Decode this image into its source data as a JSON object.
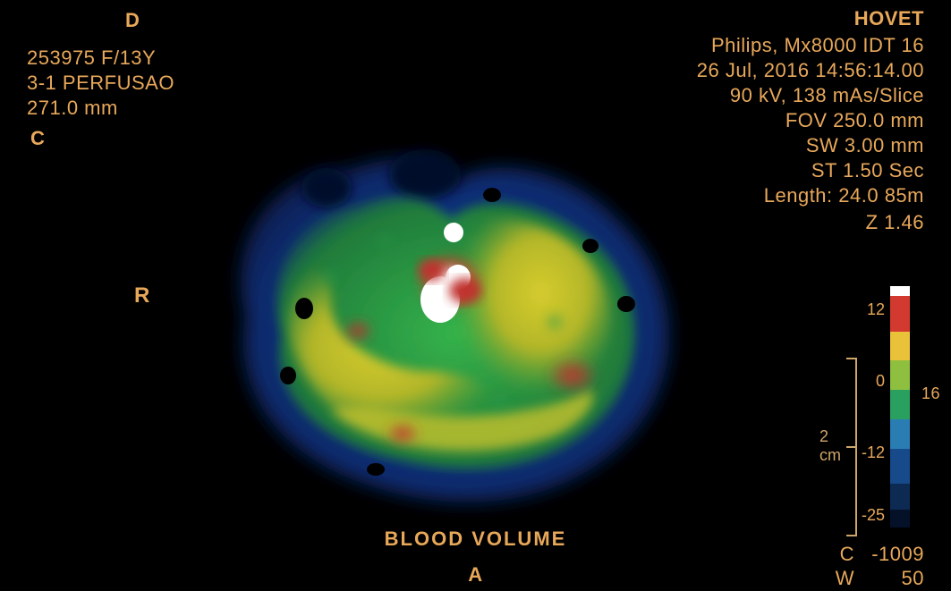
{
  "overlay": {
    "top_left": {
      "d_marker": "D",
      "patient_id": "253975 F/13Y",
      "protocol": "3-1 PERFUSAO",
      "slice_pos": "271.0 mm",
      "c_marker": "C"
    },
    "top_right": {
      "institution": "HOVET",
      "scanner": "Philips, Mx8000 IDT 16",
      "datetime": "26 Jul, 2016 14:56:14.00",
      "technique": "90 kV, 138 mAs/Slice",
      "fov": "FOV 250.0 mm",
      "sw": "SW 3.00 mm",
      "st": "ST 1.50 Sec",
      "length": "Length: 24.0 85m",
      "z_value": "Z 1.46"
    },
    "side_markers": {
      "right_marker": "R"
    },
    "bottom": {
      "map_title": "BLOOD VOLUME",
      "a_marker": "A",
      "wl_c_label": "C",
      "wl_c_value": "-1009",
      "wl_w_label": "W",
      "wl_w_value": "50"
    },
    "color_bar": {
      "labels": [
        "12",
        "0",
        "-12",
        "-25"
      ],
      "segments": [
        {
          "color": "#ffffff",
          "flex": 0.35
        },
        {
          "color": "#d33a2f",
          "flex": 1.2
        },
        {
          "color": "#e9c23a",
          "flex": 1.0
        },
        {
          "color": "#8fbf3f",
          "flex": 1.0
        },
        {
          "color": "#2aa060",
          "flex": 1.0
        },
        {
          "color": "#2a7db3",
          "flex": 1.0
        },
        {
          "color": "#164a8a",
          "flex": 1.2
        },
        {
          "color": "#0d2a52",
          "flex": 0.9
        },
        {
          "color": "#041129",
          "flex": 0.6
        }
      ]
    },
    "scale_ruler": {
      "label": "2 cm",
      "ticks": 3
    },
    "orientation_label": {
      "right_side": "16"
    }
  },
  "styling": {
    "background": "#000000",
    "text_color": "#e8a85a",
    "font_family": "Arial",
    "map": {
      "type": "perfusion-colormap",
      "background_region_color": "#0c2b6e",
      "mid_region_color": "#2c9a4a",
      "high_region_color": "#c8c22a",
      "hotspot_color": "#c0322e",
      "peak_color": "#ffffff",
      "void_color": "#000000"
    }
  }
}
